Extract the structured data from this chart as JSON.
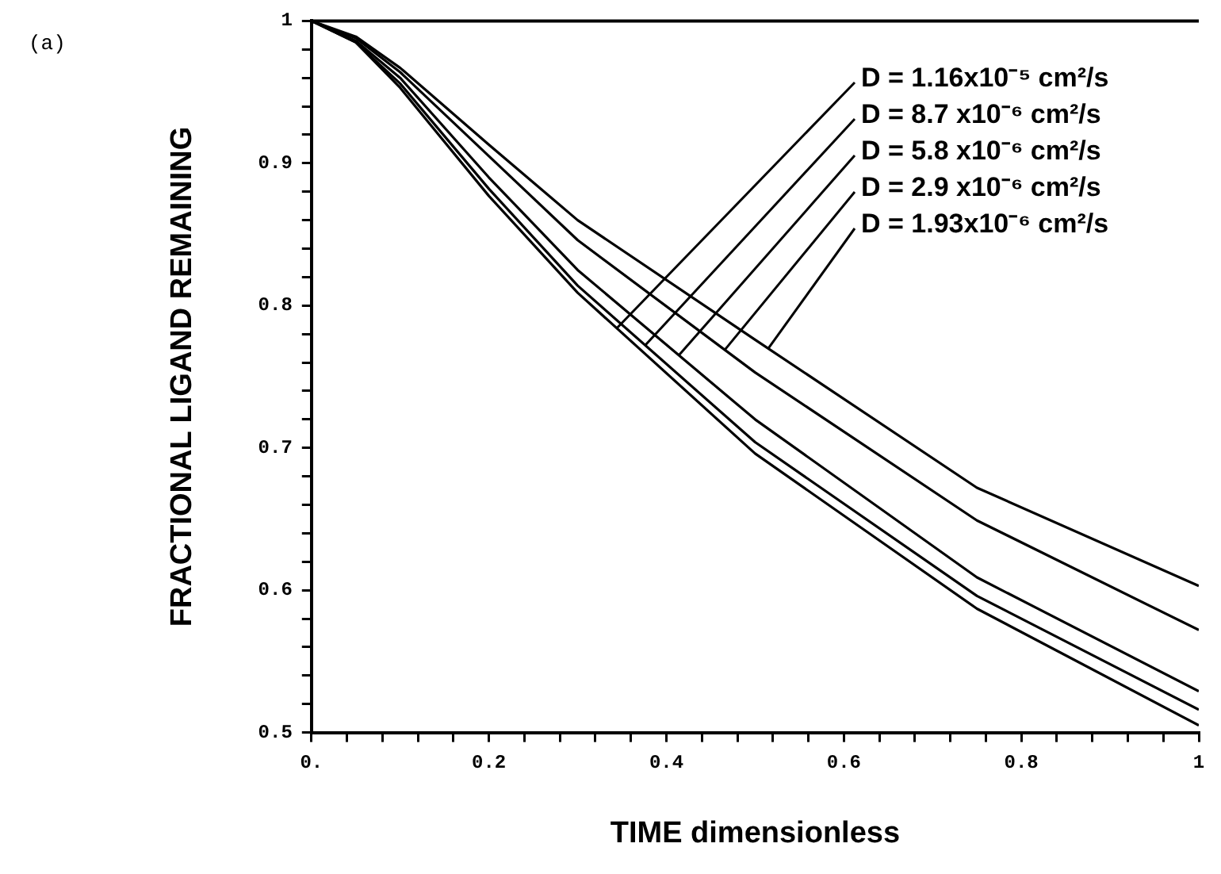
{
  "chart_data": {
    "type": "line",
    "xlabel": "TIME dimensionless",
    "ylabel": "FRACTIONAL LIGAND REMAINING",
    "xlim": [
      0,
      1
    ],
    "ylim": [
      0.5,
      1
    ],
    "xticks": [
      {
        "value": 0,
        "label": "0."
      },
      {
        "value": 0.04,
        "label": null
      },
      {
        "value": 0.08,
        "label": null
      },
      {
        "value": 0.12,
        "label": null
      },
      {
        "value": 0.16,
        "label": null
      },
      0.2,
      {
        "value": 0.24,
        "label": null
      },
      {
        "value": 0.28,
        "label": null
      },
      {
        "value": 0.32,
        "label": null
      },
      {
        "value": 0.36,
        "label": null
      },
      0.4,
      {
        "value": 0.44,
        "label": null
      },
      {
        "value": 0.48,
        "label": null
      },
      {
        "value": 0.52,
        "label": null
      },
      {
        "value": 0.56,
        "label": null
      },
      0.6,
      {
        "value": 0.64,
        "label": null
      },
      {
        "value": 0.68,
        "label": null
      },
      {
        "value": 0.72,
        "label": null
      },
      {
        "value": 0.76,
        "label": null
      },
      0.8,
      {
        "value": 0.84,
        "label": null
      },
      {
        "value": 0.88,
        "label": null
      },
      {
        "value": 0.92,
        "label": null
      },
      {
        "value": 0.96,
        "label": null
      },
      1
    ],
    "yticks": [
      0.5,
      {
        "value": 0.52,
        "label": null
      },
      {
        "value": 0.54,
        "label": null
      },
      {
        "value": 0.56,
        "label": null
      },
      {
        "value": 0.58,
        "label": null
      },
      0.6,
      {
        "value": 0.62,
        "label": null
      },
      {
        "value": 0.64,
        "label": null
      },
      {
        "value": 0.66,
        "label": null
      },
      {
        "value": 0.68,
        "label": null
      },
      0.7,
      {
        "value": 0.72,
        "label": null
      },
      {
        "value": 0.74,
        "label": null
      },
      {
        "value": 0.76,
        "label": null
      },
      {
        "value": 0.78,
        "label": null
      },
      0.8,
      {
        "value": 0.82,
        "label": null
      },
      {
        "value": 0.84,
        "label": null
      },
      {
        "value": 0.86,
        "label": null
      },
      {
        "value": 0.88,
        "label": null
      },
      0.9,
      {
        "value": 0.92,
        "label": null
      },
      {
        "value": 0.94,
        "label": null
      },
      {
        "value": 0.96,
        "label": null
      },
      {
        "value": 0.98,
        "label": null
      },
      1
    ],
    "x": [
      0,
      0.05,
      0.1,
      0.2,
      0.3,
      0.5,
      0.75,
      1
    ],
    "series": [
      {
        "color": "#000000",
        "values": [
          1,
          0.985,
          0.953,
          0.877,
          0.809,
          0.696,
          0.587,
          0.505
        ]
      },
      {
        "color": "#000000",
        "values": [
          1,
          0.985,
          0.956,
          0.882,
          0.814,
          0.704,
          0.596,
          0.516
        ]
      },
      {
        "color": "#000000",
        "values": [
          1,
          0.986,
          0.96,
          0.89,
          0.825,
          0.72,
          0.609,
          0.529
        ]
      },
      {
        "color": "#000000",
        "values": [
          1,
          0.988,
          0.964,
          0.905,
          0.846,
          0.753,
          0.649,
          0.572
        ]
      },
      {
        "color": "#000000",
        "values": [
          1,
          0.989,
          0.967,
          0.913,
          0.86,
          0.776,
          0.672,
          0.603
        ]
      }
    ],
    "annotations": [
      "(a)",
      {
        "text": "D = 1.16x10⁻⁵ cm²/s",
        "x": 0.344,
        "y": 0.784
      },
      {
        "text": "D = 8.7 x10⁻⁶ cm²/s",
        "x": 0.376,
        "y": 0.772
      },
      {
        "text": "D = 5.8 x10⁻⁶ cm²/s",
        "x": 0.414,
        "y": 0.765
      },
      {
        "text": "D = 2.9 x10⁻⁶ cm²/s",
        "x": 0.466,
        "y": 0.769
      },
      {
        "text": "D = 1.93x10⁻⁶ cm²/s",
        "x": 0.515,
        "y": 0.77
      }
    ],
    "grid": false,
    "legend": false,
    "marker": "none",
    "line_style": "solid"
  }
}
